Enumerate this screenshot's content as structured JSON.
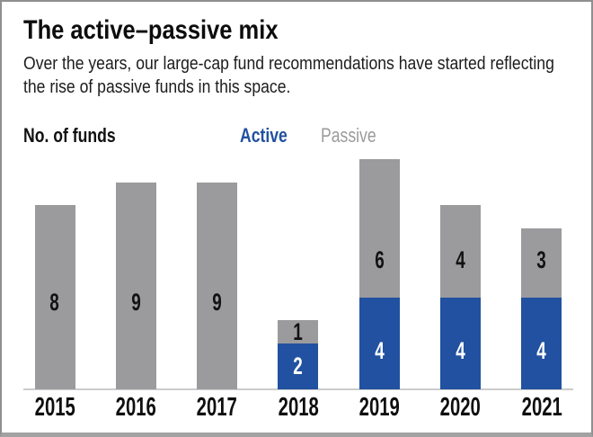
{
  "header": {
    "title": "The active–passive mix",
    "subtitle_line1": "Over the years, our large-cap fund recommendations have started reflecting",
    "subtitle_line2": "the rise of passive funds in this space."
  },
  "colors": {
    "active_blue": "#2151a0",
    "passive_gray": "#9b9b9d",
    "axis_line": "#cccccc",
    "text": "#1a1a1a"
  },
  "chart_data": {
    "type": "bar",
    "stacked": true,
    "title": "The active–passive mix",
    "ylabel": "No. of funds",
    "categories": [
      "2015",
      "2016",
      "2017",
      "2018",
      "2019",
      "2020",
      "2021"
    ],
    "series": [
      {
        "name": "Active",
        "color": "#2151a0",
        "values": [
          0,
          0,
          0,
          2,
          4,
          4,
          4
        ]
      },
      {
        "name": "Passive",
        "color": "#9b9b9d",
        "values": [
          8,
          9,
          9,
          1,
          6,
          4,
          3
        ]
      }
    ],
    "totals": [
      8,
      9,
      9,
      3,
      10,
      8,
      7
    ],
    "ylim": [
      0,
      10
    ],
    "grid": false,
    "value_labels": true,
    "legend_position": "top"
  }
}
